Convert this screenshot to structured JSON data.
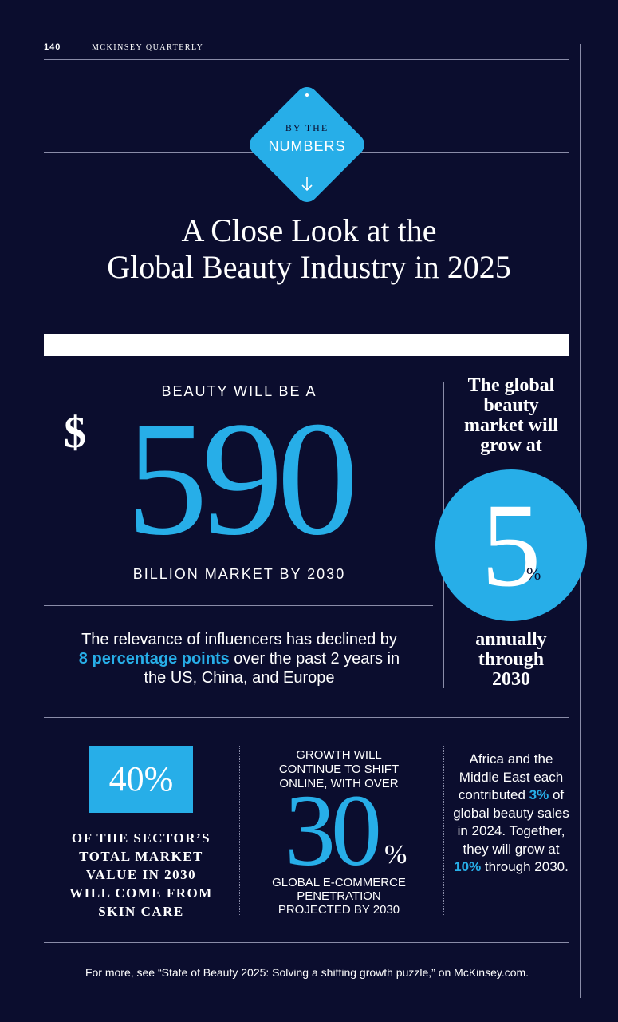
{
  "header": {
    "page_number": "140",
    "publication": "MCKINSEY QUARTERLY"
  },
  "badge": {
    "top": "BY THE",
    "main": "NUMBERS"
  },
  "title": {
    "line1": "A Close Look at the",
    "line2": "Global Beauty Industry in 2025"
  },
  "market": {
    "lead": "BEAUTY WILL BE A",
    "currency": "$",
    "figure": "590",
    "tail": "BILLION MARKET BY 2030"
  },
  "influencers": {
    "before": "The relevance of influencers has declined by ",
    "highlight": "8 percentage points",
    "after": " over the past 2 years in the US, China, and Europe"
  },
  "growth": {
    "lead": "The global beauty market will grow at",
    "figure": "5",
    "unit": "%",
    "tail": "annually through 2030"
  },
  "skin_care": {
    "figure": "40%",
    "caption": "OF THE SECTOR’S TOTAL MARKET VALUE IN 2030 WILL COME FROM SKIN CARE"
  },
  "ecommerce": {
    "lead": "GROWTH WILL CONTINUE TO SHIFT ONLINE, WITH OVER",
    "figure": "30",
    "unit": "%",
    "tail": "GLOBAL E-COMMERCE PENETRATION PROJECTED BY 2030"
  },
  "africa": {
    "part1": "Africa and the Middle East each contributed ",
    "highlight1": "3%",
    "part2": " of global beauty sales in 2024. Together, they will grow at ",
    "highlight2": "10%",
    "part3": " through 2030."
  },
  "footer": "For more, see “State of Beauty 2025: Solving a shifting growth puzzle,” on McKinsey.com."
}
